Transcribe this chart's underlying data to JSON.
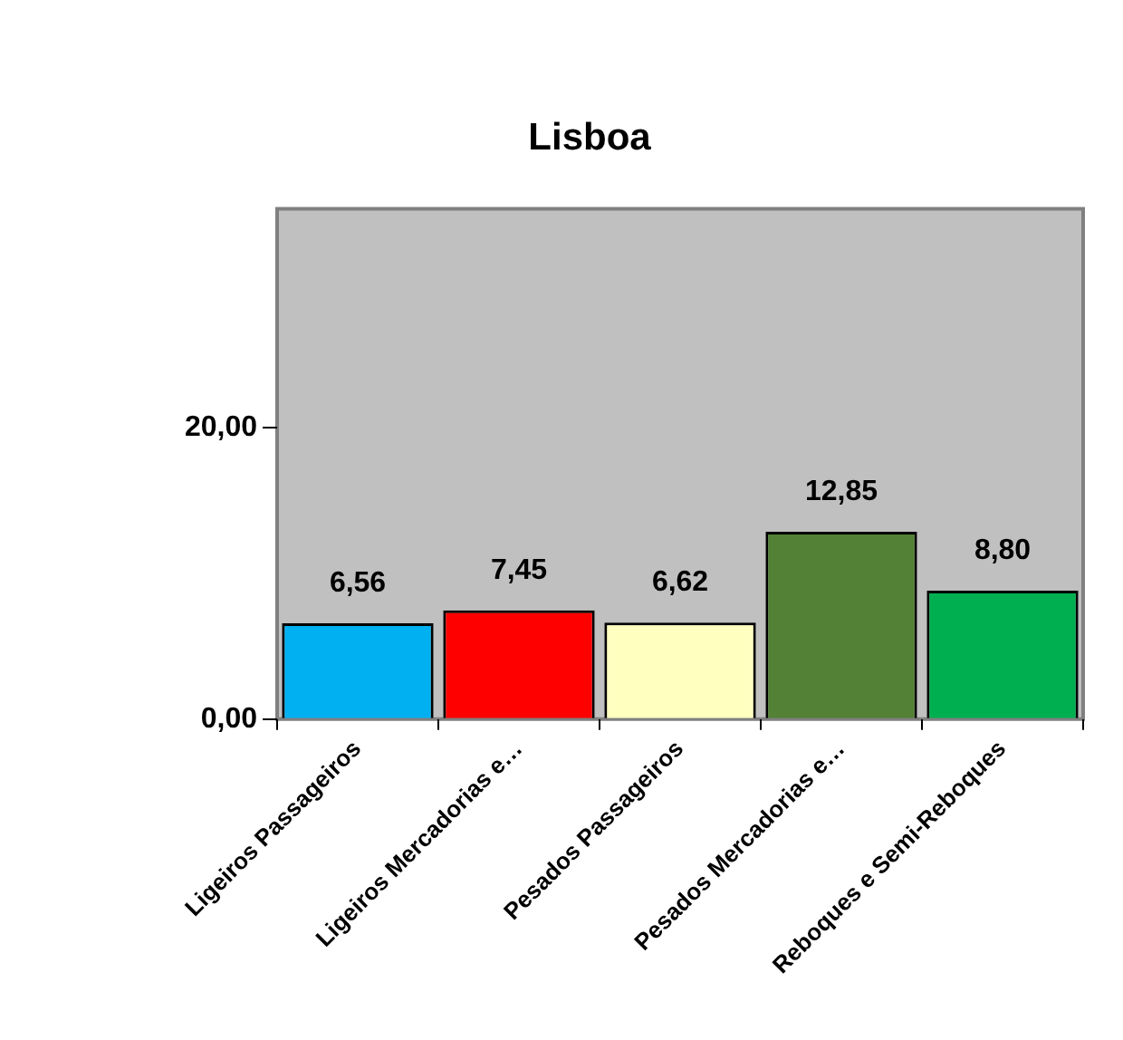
{
  "chart_data": {
    "type": "bar",
    "title": "Lisboa",
    "categories": [
      "Ligeiros Passageiros",
      "Ligeiros Mercadorias e…",
      "Pesados Passageiros",
      "Pesados Mercadorias e…",
      "Reboques e Semi-Reboques"
    ],
    "values": [
      6.56,
      7.45,
      6.62,
      12.85,
      8.8
    ],
    "colors": [
      "#00b0f0",
      "#ff0000",
      "#ffffc0",
      "#538135",
      "#00b050"
    ],
    "value_labels": [
      "6,56",
      "7,45",
      "6,62",
      "12,85",
      "8,80"
    ],
    "ylim": [
      0,
      35
    ],
    "yticks": [
      {
        "value": 0,
        "label": "0,00"
      },
      {
        "value": 20,
        "label": "20,00"
      }
    ]
  }
}
